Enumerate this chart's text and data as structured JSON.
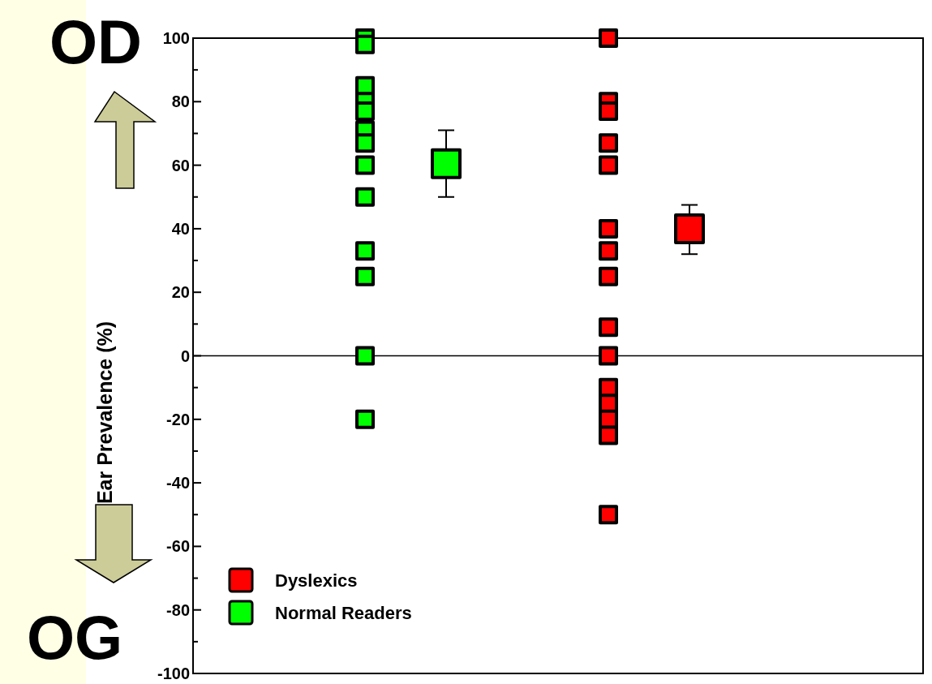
{
  "chart_data": {
    "type": "scatter",
    "ylabel": "Ear Prevalence (%)",
    "annotations": [
      "OD",
      "OG"
    ],
    "categories": [
      null,
      null,
      null,
      null,
      null,
      null,
      null,
      null,
      null
    ],
    "ylim": [
      -100,
      100
    ],
    "yticks": [
      -100,
      {
        "value": -90,
        "label": null
      },
      -80,
      {
        "value": -70,
        "label": null
      },
      -60,
      {
        "value": -50,
        "label": null
      },
      -40,
      {
        "value": -30,
        "label": null
      },
      -20,
      {
        "value": -10,
        "label": null
      },
      0,
      {
        "value": 10,
        "label": null
      },
      20,
      {
        "value": 30,
        "label": null
      },
      40,
      {
        "value": 50,
        "label": null
      },
      60,
      {
        "value": 70,
        "label": null
      },
      80,
      {
        "value": 90,
        "label": null
      },
      100
    ],
    "tick_labels": "y",
    "legend": "bottom left",
    "marker": "square",
    "ref_lines": [
      {
        "axis": "y",
        "value": 0,
        "color": "#000000"
      }
    ],
    "series": [
      {
        "name": "Dyslexics",
        "color": "#ff0000",
        "values": [
          null,
          null,
          null,
          null,
          null,
          100,
          null,
          null,
          null
        ]
      },
      {
        "color": "#ff0000",
        "values": [
          null,
          null,
          null,
          null,
          null,
          80,
          null,
          null,
          null
        ]
      },
      {
        "color": "#ff0000",
        "values": [
          null,
          null,
          null,
          null,
          null,
          77,
          null,
          null,
          null
        ]
      },
      {
        "color": "#ff0000",
        "values": [
          null,
          null,
          null,
          null,
          null,
          67,
          null,
          null,
          null
        ]
      },
      {
        "color": "#ff0000",
        "values": [
          null,
          null,
          null,
          null,
          null,
          60,
          null,
          null,
          null
        ]
      },
      {
        "color": "#ff0000",
        "values": [
          null,
          null,
          null,
          null,
          null,
          40,
          null,
          null,
          null
        ]
      },
      {
        "color": "#ff0000",
        "values": [
          null,
          null,
          null,
          null,
          null,
          33,
          null,
          null,
          null
        ]
      },
      {
        "color": "#ff0000",
        "values": [
          null,
          null,
          null,
          null,
          null,
          25,
          null,
          null,
          null
        ]
      },
      {
        "color": "#ff0000",
        "values": [
          null,
          null,
          null,
          null,
          null,
          9,
          null,
          null,
          null
        ]
      },
      {
        "color": "#ff0000",
        "values": [
          null,
          null,
          null,
          null,
          null,
          0,
          null,
          null,
          null
        ]
      },
      {
        "color": "#ff0000",
        "values": [
          null,
          null,
          null,
          null,
          null,
          -10,
          null,
          null,
          null
        ]
      },
      {
        "color": "#ff0000",
        "values": [
          null,
          null,
          null,
          null,
          null,
          -15,
          null,
          null,
          null
        ]
      },
      {
        "color": "#ff0000",
        "values": [
          null,
          null,
          null,
          null,
          null,
          -20,
          null,
          null,
          null
        ]
      },
      {
        "color": "#ff0000",
        "values": [
          null,
          null,
          null,
          null,
          null,
          -25,
          null,
          null,
          null
        ]
      },
      {
        "color": "#ff0000",
        "values": [
          null,
          null,
          null,
          null,
          null,
          -50,
          null,
          null,
          null
        ]
      },
      {
        "color": "#ff0000",
        "values": [
          null,
          null,
          null,
          null,
          null,
          null,
          40,
          null,
          null
        ],
        "errors": [
          null,
          null,
          null,
          null,
          null,
          null,
          [
            32,
            47.5
          ],
          null,
          null
        ]
      },
      {
        "name": "Normal Readers",
        "color": "#00ff00",
        "values": [
          null,
          null,
          100,
          null,
          null,
          null,
          null,
          null,
          null
        ]
      },
      {
        "color": "#00ff00",
        "values": [
          null,
          null,
          98,
          null,
          null,
          null,
          null,
          null,
          null
        ]
      },
      {
        "color": "#00ff00",
        "values": [
          null,
          null,
          85,
          null,
          null,
          null,
          null,
          null,
          null
        ]
      },
      {
        "color": "#00ff00",
        "values": [
          null,
          null,
          80,
          null,
          null,
          null,
          null,
          null,
          null
        ]
      },
      {
        "color": "#00ff00",
        "values": [
          null,
          null,
          77,
          null,
          null,
          null,
          null,
          null,
          null
        ]
      },
      {
        "color": "#00ff00",
        "values": [
          null,
          null,
          71,
          null,
          null,
          null,
          null,
          null,
          null
        ]
      },
      {
        "color": "#00ff00",
        "values": [
          null,
          null,
          67,
          null,
          null,
          null,
          null,
          null,
          null
        ]
      },
      {
        "color": "#00ff00",
        "values": [
          null,
          null,
          60,
          null,
          null,
          null,
          null,
          null,
          null
        ]
      },
      {
        "color": "#00ff00",
        "values": [
          null,
          null,
          50,
          null,
          null,
          null,
          null,
          null,
          null
        ]
      },
      {
        "color": "#00ff00",
        "values": [
          null,
          null,
          33,
          null,
          null,
          null,
          null,
          null,
          null
        ]
      },
      {
        "color": "#00ff00",
        "values": [
          null,
          null,
          25,
          null,
          null,
          null,
          null,
          null,
          null
        ]
      },
      {
        "color": "#00ff00",
        "values": [
          null,
          null,
          0,
          null,
          null,
          null,
          null,
          null,
          null
        ]
      },
      {
        "color": "#00ff00",
        "values": [
          null,
          null,
          -20,
          null,
          null,
          null,
          null,
          null,
          null
        ]
      },
      {
        "color": "#00ff00",
        "values": [
          null,
          null,
          null,
          60.5,
          null,
          null,
          null,
          null,
          null
        ],
        "errors": [
          null,
          null,
          null,
          [
            50,
            71
          ],
          null,
          null,
          null,
          null,
          null
        ]
      }
    ]
  }
}
